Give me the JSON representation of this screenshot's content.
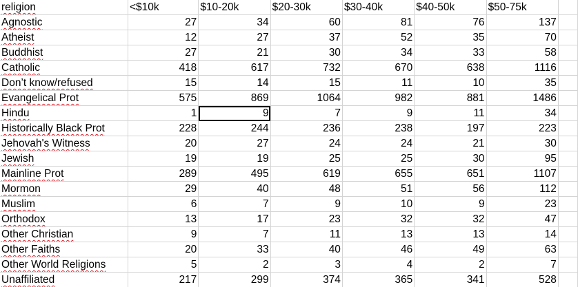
{
  "sheet": {
    "headers": [
      "religion",
      "<$10k",
      "$10-20k",
      "$20-30k",
      "$30-40k",
      "$40-50k",
      "$50-75k"
    ],
    "selected_cell": {
      "row": 6,
      "col": 2
    },
    "rows": [
      {
        "religion": "Agnostic",
        "values": [
          "27",
          "34",
          "60",
          "81",
          "76",
          "137"
        ]
      },
      {
        "religion": "Atheist",
        "values": [
          "12",
          "27",
          "37",
          "52",
          "35",
          "70"
        ]
      },
      {
        "religion": "Buddhist",
        "values": [
          "27",
          "21",
          "30",
          "34",
          "33",
          "58"
        ]
      },
      {
        "religion": "Catholic",
        "values": [
          "418",
          "617",
          "732",
          "670",
          "638",
          "1116"
        ]
      },
      {
        "religion": "Don’t know/refused",
        "values": [
          "15",
          "14",
          "15",
          "11",
          "10",
          "35"
        ]
      },
      {
        "religion": "Evangelical Prot",
        "values": [
          "575",
          "869",
          "1064",
          "982",
          "881",
          "1486"
        ]
      },
      {
        "religion": "Hindu",
        "values": [
          "1",
          "9",
          "7",
          "9",
          "11",
          "34"
        ]
      },
      {
        "religion": "Historically Black Prot",
        "values": [
          "228",
          "244",
          "236",
          "238",
          "197",
          "223"
        ]
      },
      {
        "religion": "Jehovah's Witness",
        "values": [
          "20",
          "27",
          "24",
          "24",
          "21",
          "30"
        ]
      },
      {
        "religion": "Jewish",
        "values": [
          "19",
          "19",
          "25",
          "25",
          "30",
          "95"
        ]
      },
      {
        "religion": "Mainline Prot",
        "values": [
          "289",
          "495",
          "619",
          "655",
          "651",
          "1107"
        ]
      },
      {
        "religion": "Mormon",
        "values": [
          "29",
          "40",
          "48",
          "51",
          "56",
          "112"
        ]
      },
      {
        "religion": "Muslim",
        "values": [
          "6",
          "7",
          "9",
          "10",
          "9",
          "23"
        ]
      },
      {
        "religion": "Orthodox",
        "values": [
          "13",
          "17",
          "23",
          "32",
          "32",
          "47"
        ]
      },
      {
        "religion": "Other Christian",
        "values": [
          "9",
          "7",
          "11",
          "13",
          "13",
          "14"
        ]
      },
      {
        "religion": "Other Faiths",
        "values": [
          "20",
          "33",
          "40",
          "46",
          "49",
          "63"
        ]
      },
      {
        "religion": "Other World Religions",
        "values": [
          "5",
          "2",
          "3",
          "4",
          "2",
          "7"
        ]
      },
      {
        "religion": "Unaffiliated",
        "values": [
          "217",
          "299",
          "374",
          "365",
          "341",
          "528"
        ]
      }
    ]
  }
}
